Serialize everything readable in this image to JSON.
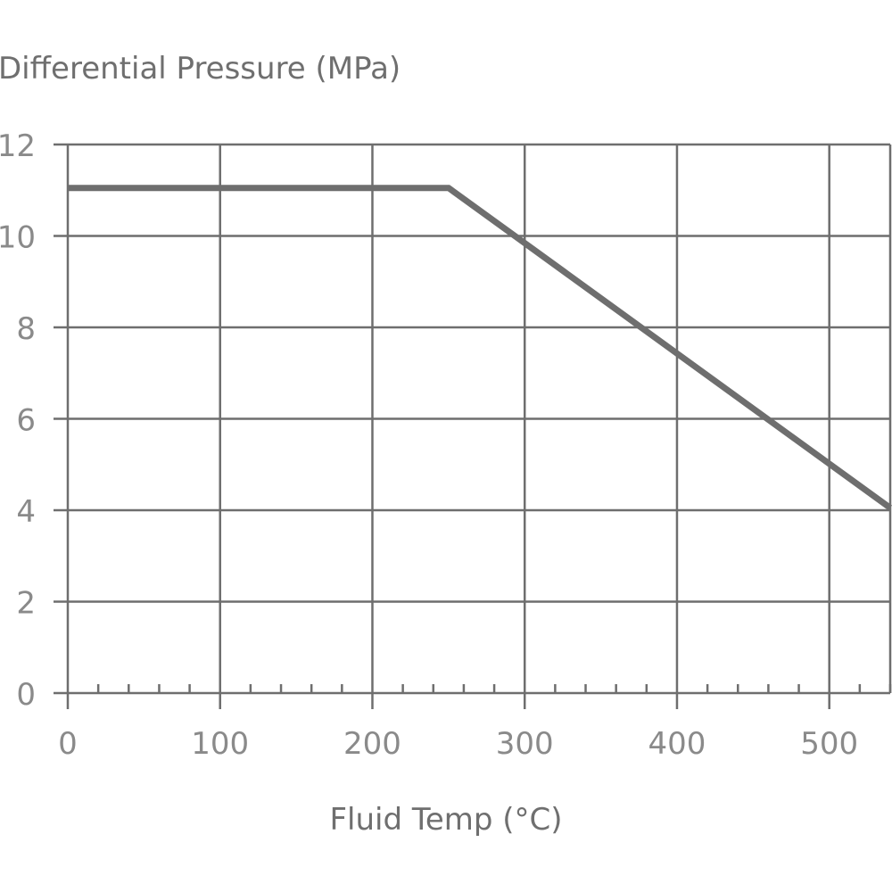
{
  "chart_data": {
    "type": "line",
    "ylabel": "Differential Pressure (MPa)",
    "xlabel": "Fluid Temp (°C)",
    "xlim": [
      0,
      540
    ],
    "ylim": [
      0,
      12
    ],
    "x_ticks": [
      0,
      100,
      200,
      300,
      400,
      500
    ],
    "x_tick_labels": [
      "0",
      "100",
      "200",
      "300",
      "400",
      "500"
    ],
    "y_ticks": [
      0,
      2,
      4,
      6,
      8,
      10,
      12
    ],
    "y_tick_labels": [
      "0",
      "2",
      "4",
      "6",
      "8",
      "10",
      "12"
    ],
    "x_minor_step": 20,
    "grid": true,
    "colors": {
      "line": "#6e6e6e",
      "grid": "#6e6e6e",
      "text": "#8a8a8a"
    },
    "series": [
      {
        "x": [
          0,
          250,
          540
        ],
        "y": [
          11.05,
          11.05,
          4.05
        ]
      }
    ]
  }
}
